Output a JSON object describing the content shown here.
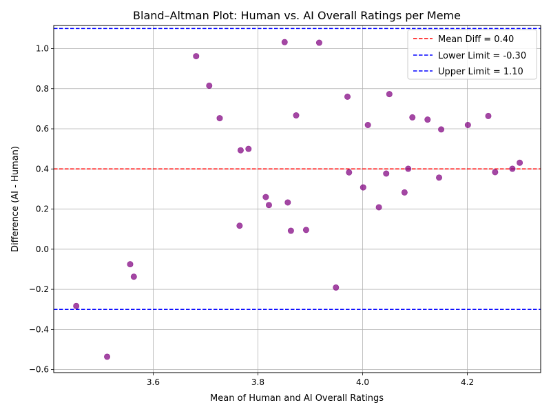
{
  "chart_data": {
    "type": "scatter",
    "title": "Bland–Altman Plot: Human vs. AI Overall Ratings per Meme",
    "xlabel": "Mean of Human and AI Overall Ratings",
    "ylabel": "Difference (AI - Human)",
    "xlim": [
      3.41,
      4.34
    ],
    "ylim": [
      -0.615,
      1.115
    ],
    "xticks": [
      3.6,
      3.8,
      4.0,
      4.2
    ],
    "xtick_labels": [
      "3.6",
      "3.8",
      "4.0",
      "4.2"
    ],
    "yticks": [
      -0.6,
      -0.4,
      -0.2,
      0.0,
      0.2,
      0.4,
      0.6,
      0.8,
      1.0
    ],
    "ytick_labels": [
      "−0.6",
      "−0.4",
      "−0.2",
      "0.0",
      "0.2",
      "0.4",
      "0.6",
      "0.8",
      "1.0"
    ],
    "grid": true,
    "legend_position": "top-right",
    "point_color": "#800080",
    "points": [
      {
        "x": 3.453,
        "y": -0.283
      },
      {
        "x": 3.512,
        "y": -0.536
      },
      {
        "x": 3.556,
        "y": -0.075
      },
      {
        "x": 3.563,
        "y": -0.137
      },
      {
        "x": 3.682,
        "y": 0.962
      },
      {
        "x": 3.707,
        "y": 0.815
      },
      {
        "x": 3.727,
        "y": 0.653
      },
      {
        "x": 3.765,
        "y": 0.117
      },
      {
        "x": 3.767,
        "y": 0.493
      },
      {
        "x": 3.782,
        "y": 0.5
      },
      {
        "x": 3.815,
        "y": 0.26
      },
      {
        "x": 3.821,
        "y": 0.22
      },
      {
        "x": 3.851,
        "y": 1.032
      },
      {
        "x": 3.857,
        "y": 0.233
      },
      {
        "x": 3.863,
        "y": 0.092
      },
      {
        "x": 3.873,
        "y": 0.667
      },
      {
        "x": 3.892,
        "y": 0.096
      },
      {
        "x": 3.917,
        "y": 1.029
      },
      {
        "x": 3.949,
        "y": -0.191
      },
      {
        "x": 3.971,
        "y": 0.76
      },
      {
        "x": 3.974,
        "y": 0.383
      },
      {
        "x": 4.001,
        "y": 0.308
      },
      {
        "x": 4.01,
        "y": 0.619
      },
      {
        "x": 4.031,
        "y": 0.209
      },
      {
        "x": 4.045,
        "y": 0.377
      },
      {
        "x": 4.051,
        "y": 0.773
      },
      {
        "x": 4.08,
        "y": 0.283
      },
      {
        "x": 4.087,
        "y": 0.401
      },
      {
        "x": 4.095,
        "y": 0.657
      },
      {
        "x": 4.124,
        "y": 0.646
      },
      {
        "x": 4.146,
        "y": 0.357
      },
      {
        "x": 4.15,
        "y": 0.597
      },
      {
        "x": 4.201,
        "y": 0.619
      },
      {
        "x": 4.24,
        "y": 0.664
      },
      {
        "x": 4.253,
        "y": 0.384
      },
      {
        "x": 4.286,
        "y": 0.401
      },
      {
        "x": 4.3,
        "y": 0.431
      }
    ],
    "reference_lines": [
      {
        "label": "Mean Diff = 0.40",
        "value": 0.4,
        "color": "#ff0000"
      },
      {
        "label": "Lower Limit = -0.30",
        "value": -0.3,
        "color": "#0000ff"
      },
      {
        "label": "Upper Limit = 1.10",
        "value": 1.1,
        "color": "#0000ff"
      }
    ]
  }
}
